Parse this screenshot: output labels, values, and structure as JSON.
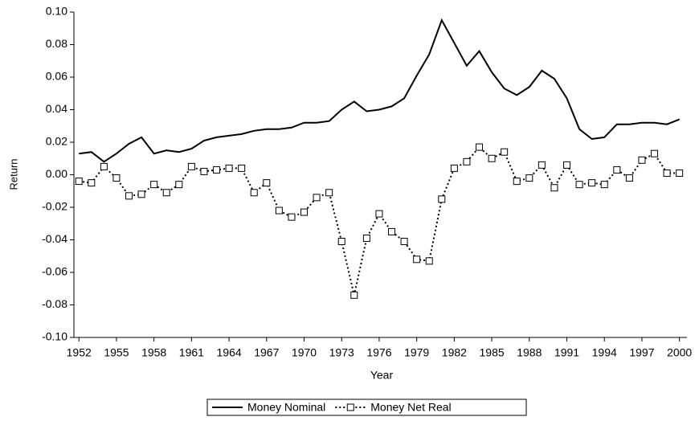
{
  "chart_data": {
    "type": "line",
    "x_label": "Year",
    "y_label": "Return",
    "x": [
      1952,
      1953,
      1954,
      1955,
      1956,
      1957,
      1958,
      1959,
      1960,
      1961,
      1962,
      1963,
      1964,
      1965,
      1966,
      1967,
      1968,
      1969,
      1970,
      1971,
      1972,
      1973,
      1974,
      1975,
      1976,
      1977,
      1978,
      1979,
      1980,
      1981,
      1982,
      1983,
      1984,
      1985,
      1986,
      1987,
      1988,
      1989,
      1990,
      1991,
      1992,
      1993,
      1994,
      1995,
      1996,
      1997,
      1998,
      1999,
      2000
    ],
    "series": [
      {
        "name": "Money Nominal",
        "color": "#000000",
        "style": "solid",
        "values": [
          0.013,
          0.014,
          0.008,
          0.013,
          0.019,
          0.023,
          0.013,
          0.015,
          0.014,
          0.016,
          0.021,
          0.023,
          0.024,
          0.025,
          0.027,
          0.028,
          0.028,
          0.029,
          0.032,
          0.032,
          0.033,
          0.04,
          0.045,
          0.039,
          0.04,
          0.042,
          0.047,
          0.061,
          0.074,
          0.095,
          0.081,
          0.067,
          0.076,
          0.063,
          0.053,
          0.049,
          0.054,
          0.064,
          0.059,
          0.047,
          0.028,
          0.022,
          0.023,
          0.031,
          0.031,
          0.032,
          0.032,
          0.031,
          0.034
        ]
      },
      {
        "name": "Money Net Real",
        "color": "#000000",
        "style": "dotted",
        "values": [
          -0.004,
          -0.005,
          0.005,
          -0.002,
          -0.013,
          -0.012,
          -0.006,
          -0.011,
          -0.006,
          0.005,
          0.002,
          0.003,
          0.004,
          0.004,
          -0.011,
          -0.005,
          -0.022,
          -0.026,
          -0.023,
          -0.014,
          -0.011,
          -0.041,
          -0.074,
          -0.039,
          -0.024,
          -0.035,
          -0.041,
          -0.052,
          -0.053,
          -0.015,
          0.004,
          0.008,
          0.017,
          0.01,
          0.014,
          -0.004,
          -0.002,
          0.006,
          -0.008,
          0.006,
          -0.006,
          -0.005,
          -0.006,
          0.003,
          -0.002,
          0.009,
          0.013,
          0.001,
          0.001
        ]
      }
    ],
    "xlim": [
      1951.6,
      2000.6
    ],
    "xticks": [
      1952,
      1955,
      1958,
      1961,
      1964,
      1967,
      1970,
      1973,
      1976,
      1979,
      1982,
      1985,
      1988,
      1991,
      1994,
      1997,
      2000
    ],
    "ylim": [
      -0.1,
      0.1
    ],
    "yticks": [
      {
        "value": -0.1,
        "label": "-0.10"
      },
      {
        "value": -0.08,
        "label": "-0.08"
      },
      {
        "value": -0.06,
        "label": "-0.06"
      },
      {
        "value": -0.04,
        "label": "-0.04"
      },
      {
        "value": -0.02,
        "label": "-0.02"
      },
      {
        "value": 0,
        "label": "0.00"
      },
      {
        "value": 0.02,
        "label": "0.02"
      },
      {
        "value": 0.04,
        "label": "0.04"
      },
      {
        "value": 0.06,
        "label": "0.06"
      },
      {
        "value": 0.08,
        "label": "0.08"
      },
      {
        "value": 0.1,
        "label": "0.10"
      }
    ],
    "legend": "bottom"
  }
}
